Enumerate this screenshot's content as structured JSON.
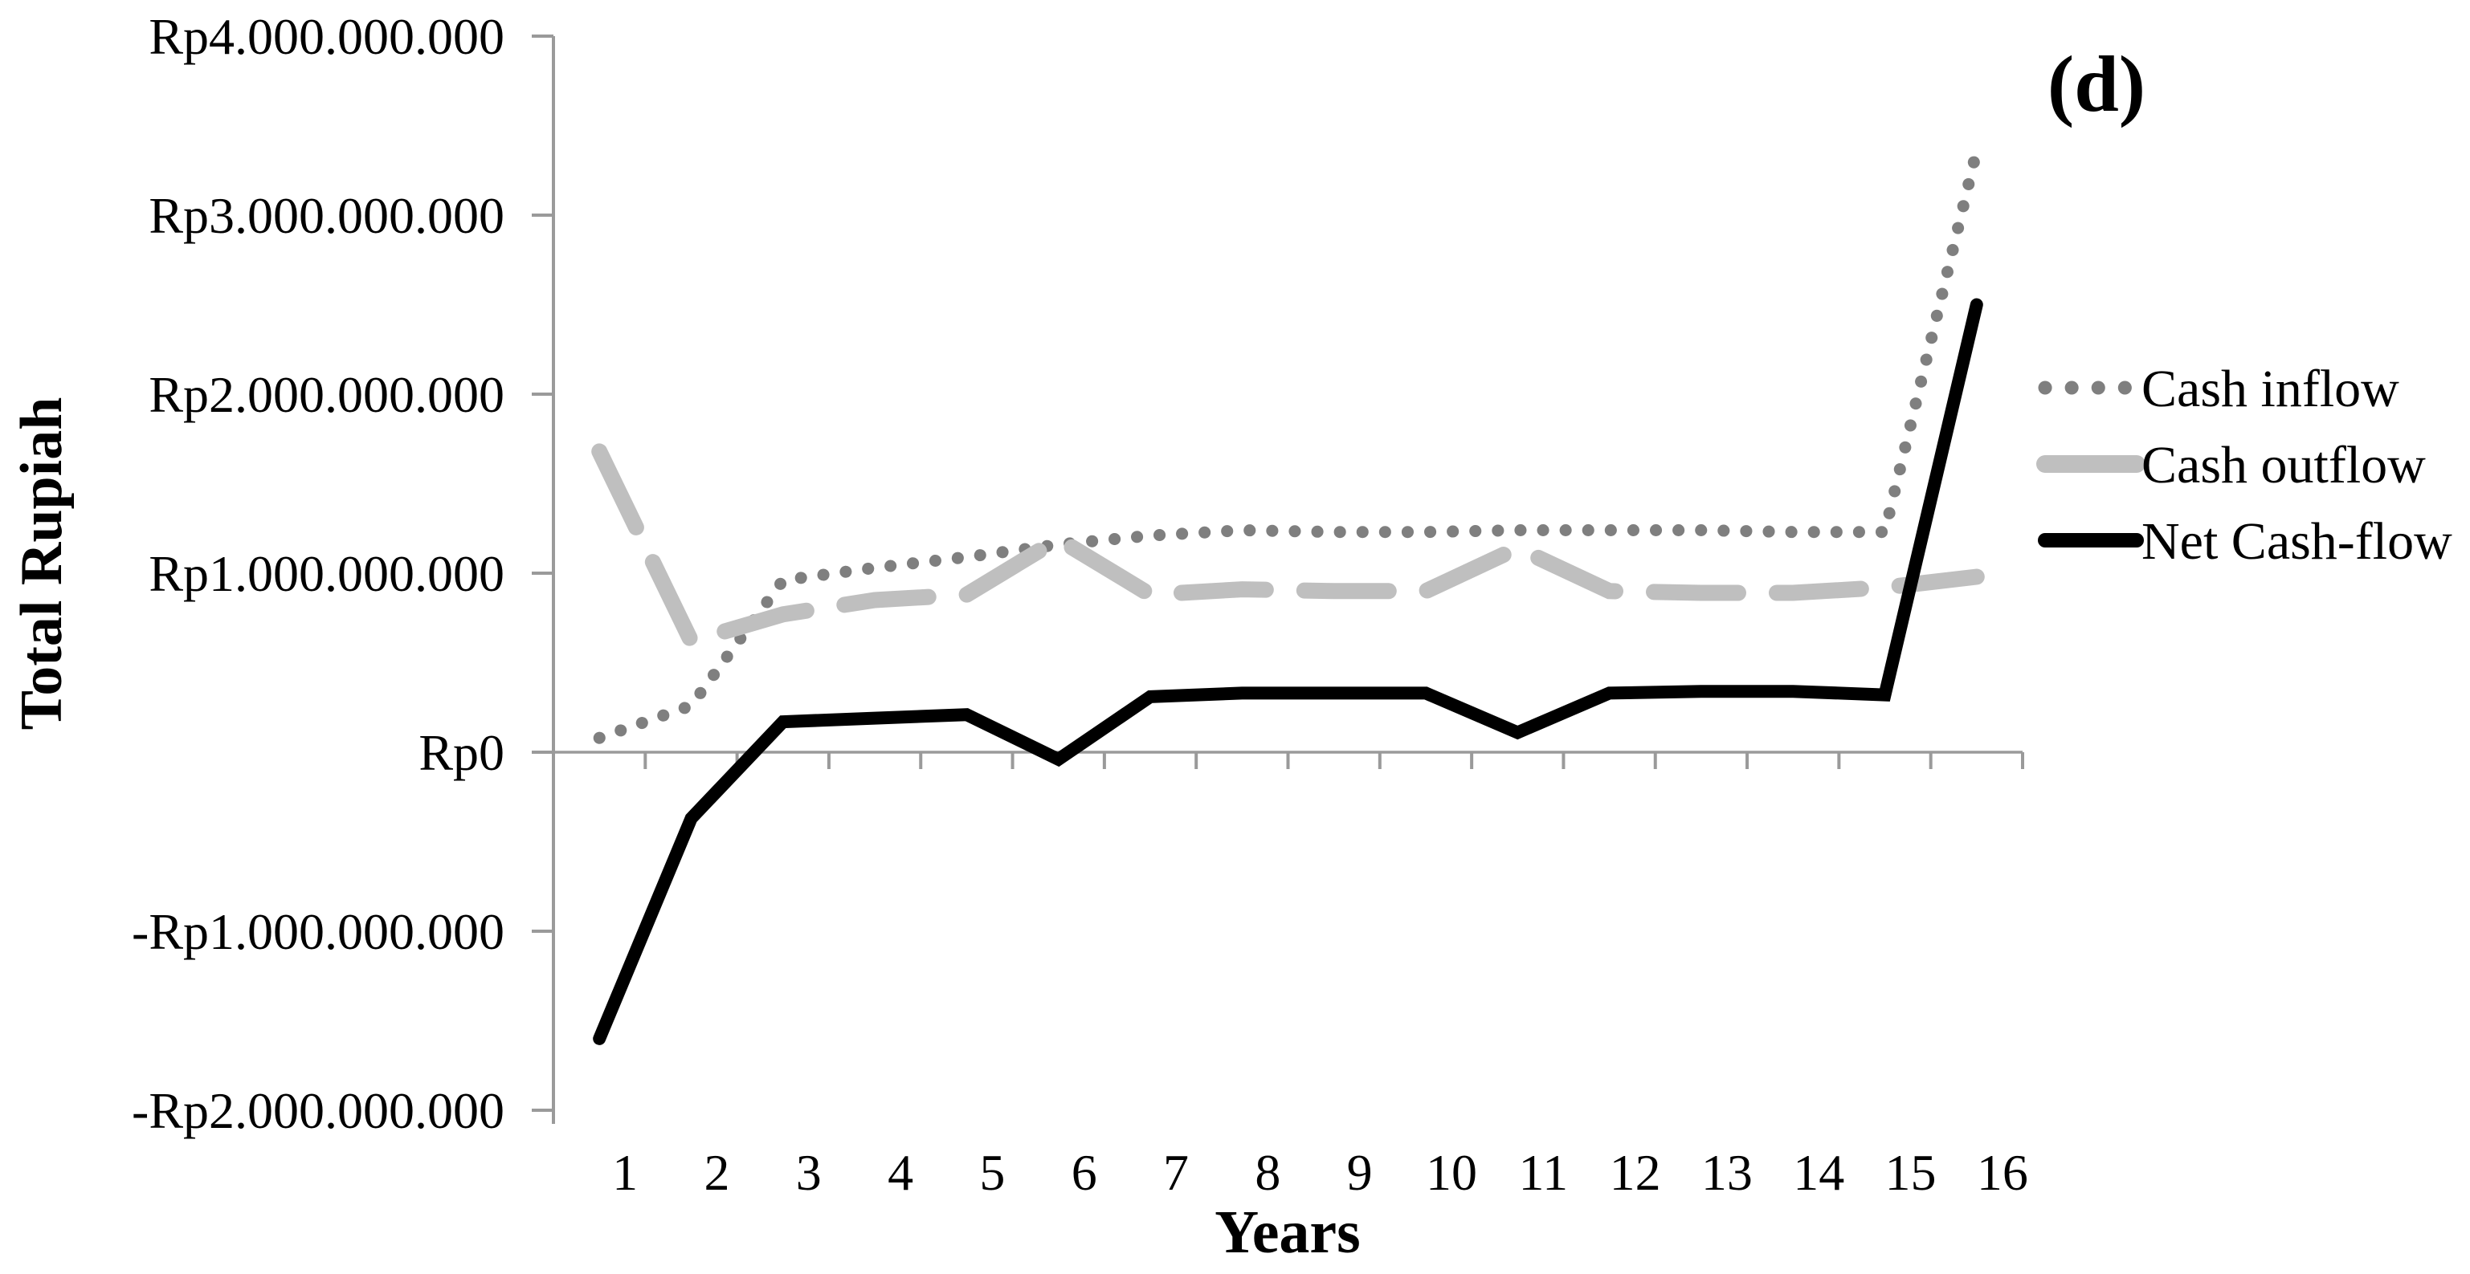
{
  "figure": {
    "panel_label": "(d)",
    "background_color": "#ffffff"
  },
  "axis": {
    "x_title": "Years",
    "y_title": "Total Rupiah",
    "axis_line_color": "#9a9a9a"
  },
  "legend": {
    "position": "right",
    "entries": [
      {
        "label": "Cash inflow",
        "style": "dotted",
        "color": "#7f7f7f"
      },
      {
        "label": "Cash outflow",
        "style": "dashed",
        "color": "#bfbfbf"
      },
      {
        "label": "Net Cash-flow",
        "style": "solid",
        "color": "#000000"
      }
    ]
  },
  "chart_data": {
    "type": "line",
    "title": "",
    "xlabel": "Years",
    "ylabel": "Total Rupiah",
    "annotation": "(d)",
    "grid": false,
    "legend_position": "right",
    "x_categories": [
      "1",
      "2",
      "3",
      "4",
      "5",
      "6",
      "7",
      "8",
      "9",
      "10",
      "11",
      "12",
      "13",
      "14",
      "15",
      "16"
    ],
    "y_axis_unit": "billion rupiah",
    "ylim": [
      -2,
      4
    ],
    "y_ticks": [
      {
        "label": "Rp4.000.000.000",
        "value": 4
      },
      {
        "label": "Rp3.000.000.000",
        "value": 3
      },
      {
        "label": "Rp2.000.000.000",
        "value": 2
      },
      {
        "label": "Rp1.000.000.000",
        "value": 1
      },
      {
        "label": "Rp0",
        "value": 0
      },
      {
        "label": "-Rp1.000.000.000",
        "value": -1
      },
      {
        "label": "-Rp2.000.000.000",
        "value": -2
      }
    ],
    "series": [
      {
        "name": "Cash inflow",
        "style": "dotted",
        "color": "#7f7f7f",
        "values": [
          0.08,
          0.26,
          0.96,
          1.03,
          1.09,
          1.16,
          1.21,
          1.24,
          1.23,
          1.23,
          1.24,
          1.24,
          1.24,
          1.23,
          1.23,
          3.36
        ]
      },
      {
        "name": "Cash outflow",
        "style": "dashed",
        "color": "#bfbfbf",
        "values": [
          1.68,
          0.62,
          0.77,
          0.85,
          0.88,
          1.19,
          0.88,
          0.91,
          0.9,
          0.9,
          1.14,
          0.9,
          0.89,
          0.89,
          0.92,
          0.98
        ]
      },
      {
        "name": "Net Cash-flow",
        "style": "solid",
        "color": "#000000",
        "values": [
          -1.6,
          -0.37,
          0.17,
          0.19,
          0.21,
          -0.04,
          0.31,
          0.33,
          0.33,
          0.33,
          0.11,
          0.33,
          0.34,
          0.34,
          0.32,
          2.5
        ]
      }
    ]
  }
}
